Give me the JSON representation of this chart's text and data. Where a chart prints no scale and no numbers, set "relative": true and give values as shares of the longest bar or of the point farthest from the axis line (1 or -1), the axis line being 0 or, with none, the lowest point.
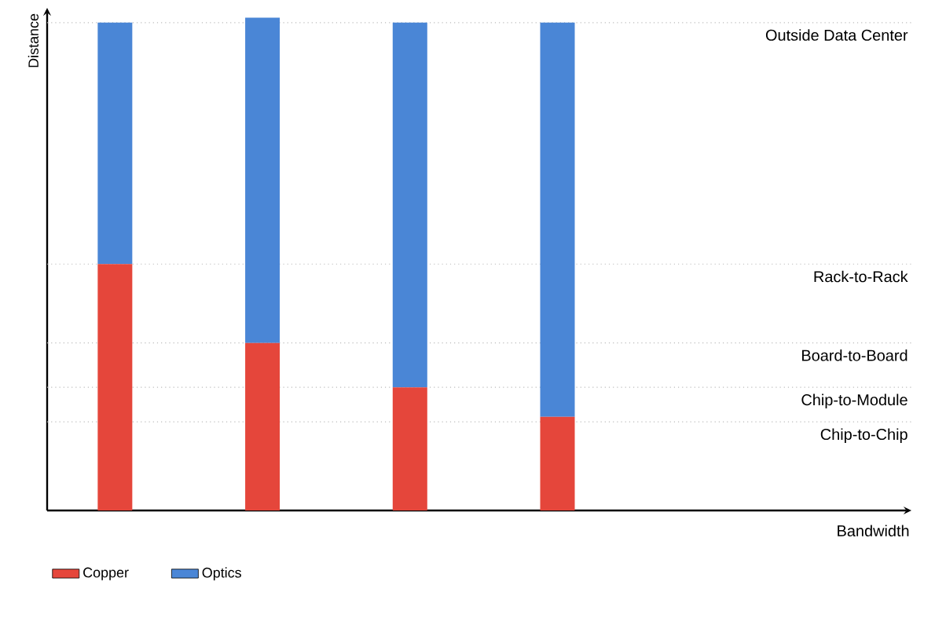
{
  "chart_data": {
    "type": "bar",
    "stacked": true,
    "relative": true,
    "annotations": [
      "Bandwidth"
    ],
    "ylabel": "Distance",
    "categories": [
      null,
      null,
      null,
      null
    ],
    "series": [
      {
        "name": "Copper",
        "color": "#e5463b",
        "values": [
          0.5,
          0.34,
          0.25,
          0.19
        ]
      },
      {
        "name": "Optics",
        "color": "#4a86d6",
        "values": [
          0.49,
          0.66,
          0.74,
          0.8
        ]
      }
    ],
    "ref_lines": [
      {
        "axis": "y",
        "value": 0.99,
        "label": "Outside Data Center",
        "color": "#bbbbbb",
        "line_style": "dotted"
      },
      {
        "axis": "y",
        "value": 0.5,
        "label": "Rack-to-Rack",
        "color": "#bbbbbb",
        "line_style": "dotted"
      },
      {
        "axis": "y",
        "value": 0.34,
        "label": "Board-to-Board",
        "color": "#bbbbbb",
        "line_style": "dotted"
      },
      {
        "axis": "y",
        "value": 0.25,
        "label": "Chip-to-Module",
        "color": "#bbbbbb",
        "line_style": "dotted"
      },
      {
        "axis": "y",
        "value": 0.18,
        "label": "Chip-to-Chip",
        "color": "#bbbbbb",
        "line_style": "dotted"
      }
    ],
    "legend": "bottom"
  }
}
